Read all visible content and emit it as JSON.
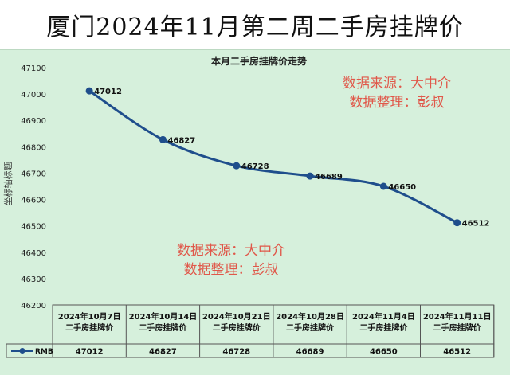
{
  "page": {
    "banner_title": "厦门2024年11月第二周二手房挂牌价"
  },
  "notes": {
    "top": {
      "line1": "数据来源：大中介",
      "line2": "数据整理：彭叔"
    },
    "bottom": {
      "line1": "数据来源：大中介",
      "line2": "数据整理：彭叔"
    }
  },
  "colors": {
    "series": "#1f4e8c",
    "background": "#d6f0dc",
    "note": "#e0584a"
  },
  "chart_data": {
    "type": "line",
    "title": "本月二手房挂牌价走势",
    "ylabel": "坐标轴标题",
    "xlabel": "",
    "ylim": [
      46200,
      47100
    ],
    "yticks": [
      46200,
      46300,
      46400,
      46500,
      46600,
      46700,
      46800,
      46900,
      47000,
      47100
    ],
    "grid": false,
    "legend_placement": "data-table",
    "categories": [
      "2024年10月7日二手房挂牌价",
      "2024年10月14日二手房挂牌价",
      "2024年10月21日二手房挂牌价",
      "2024年10月28日二手房挂牌价",
      "2024年11月4日二手房挂牌价",
      "2024年11月11日二手房挂牌价"
    ],
    "series": [
      {
        "name": "RMB",
        "values": [
          47012,
          46827,
          46728,
          46689,
          46650,
          46512
        ]
      }
    ],
    "data_labels": [
      "47012",
      "46827",
      "46728",
      "46689",
      "46650",
      "46512"
    ]
  }
}
